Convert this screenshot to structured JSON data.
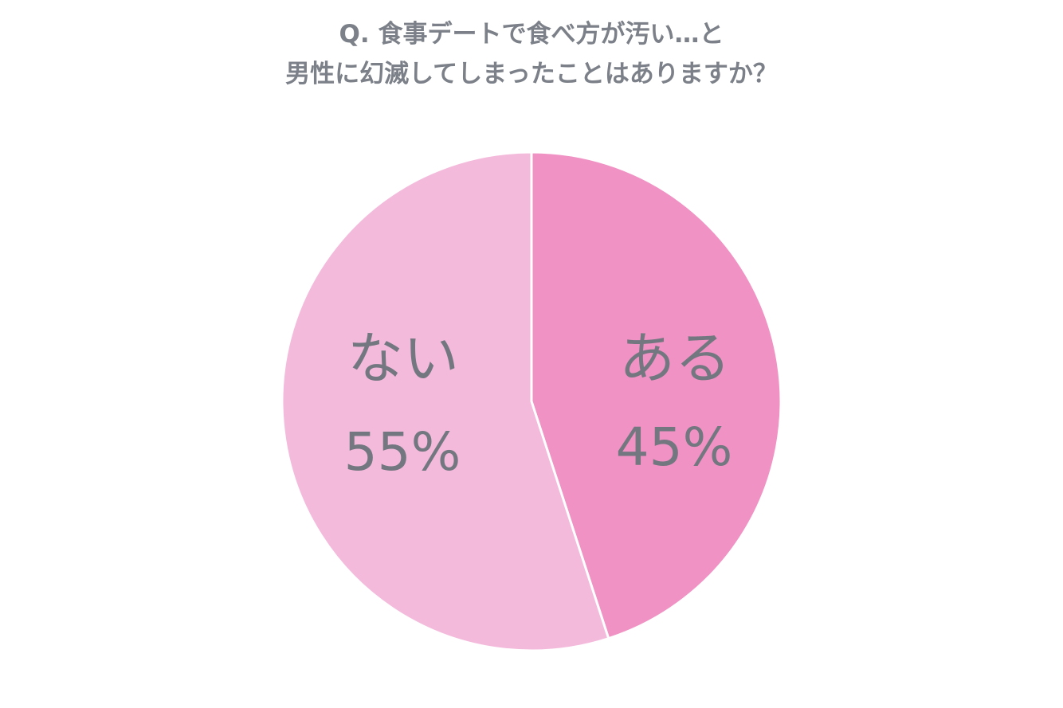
{
  "chart_data": {
    "type": "pie",
    "title": [
      "Q. 食事デートで食べ方が汚い…と",
      "男性に幻滅してしまったことはありますか？"
    ],
    "slices": [
      {
        "label": "ある",
        "value": 45,
        "value_label": "45%",
        "color": "#f092c3"
      },
      {
        "label": "ない",
        "value": 55,
        "value_label": "55%",
        "color": "#f4badb"
      }
    ],
    "start": "12 o'clock",
    "direction": "clockwise",
    "separator_color": "#ffffff",
    "label_color": "#737780",
    "legend": "none"
  }
}
